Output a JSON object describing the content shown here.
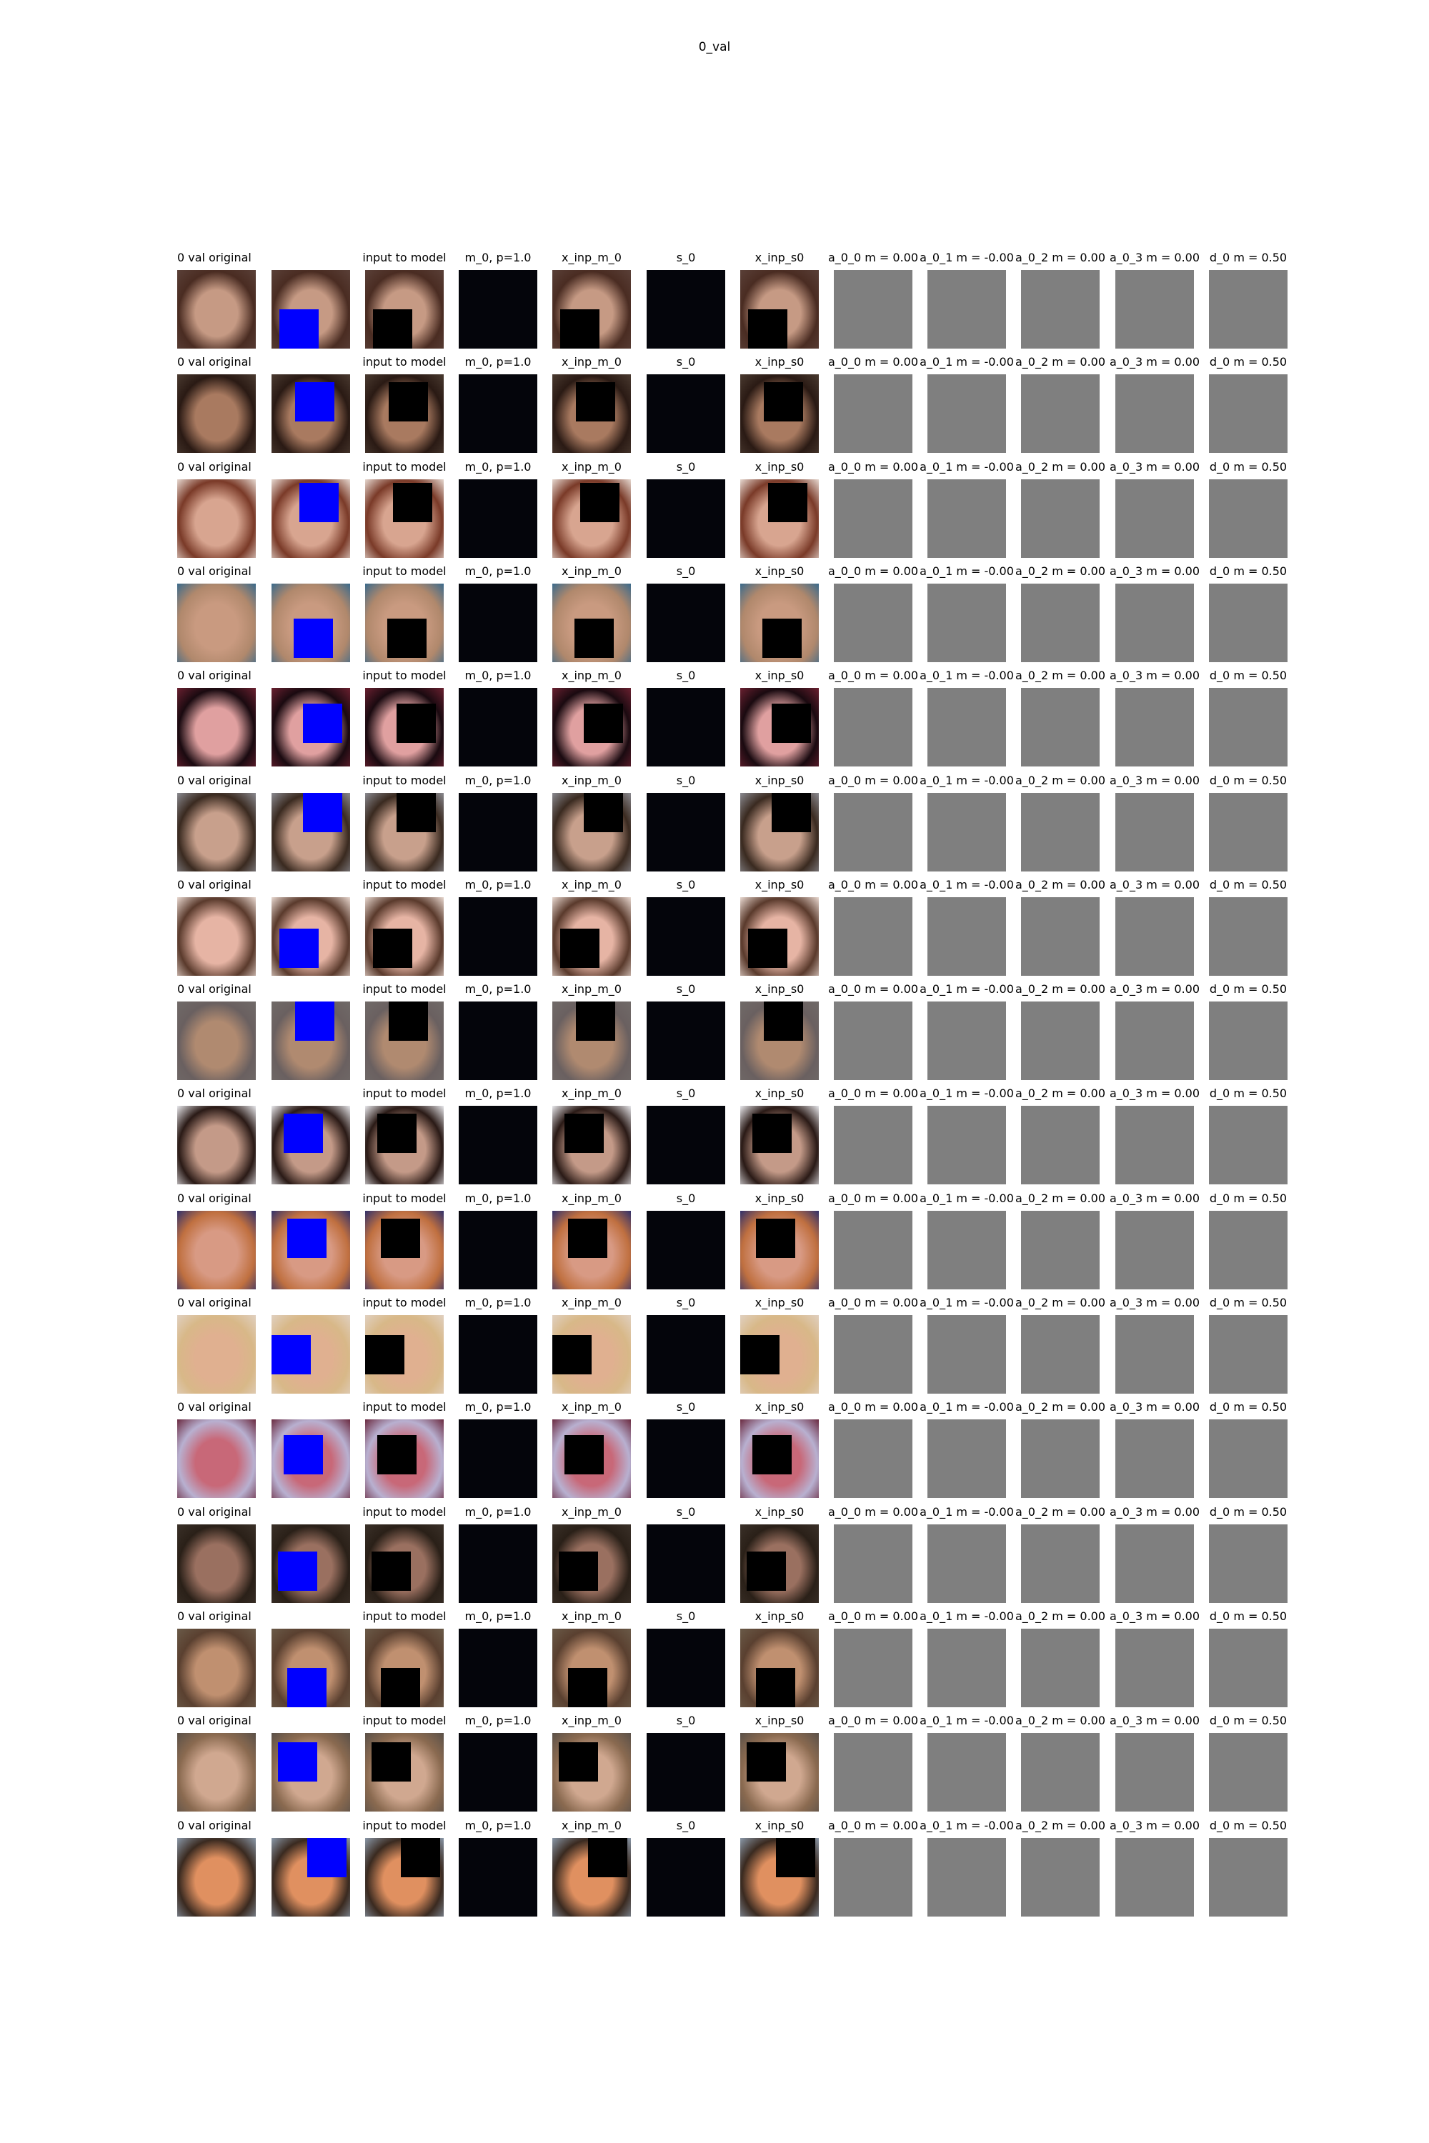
{
  "figure_title": "0_val",
  "column_titles": [
    "0 val  original",
    "",
    "input to model",
    "m_0, p=1.0",
    "x_inp_m_0",
    "s_0",
    "x_inp_s0",
    "a_0_0 m = 0.00",
    "a_0_1 m = -0.00",
    "a_0_2 m = 0.00",
    "a_0_3 m = 0.00",
    "d_0 m = 0.50"
  ],
  "colors": {
    "mask_patch": "#0000ff",
    "masked_input": "#000000",
    "dark_panel": "#04050b",
    "gray_panel": "#7f7f7f"
  },
  "rows": [
    {
      "skin": "#c69a84",
      "hair": "#4a2c22",
      "bg": "#5a4038",
      "patch": [
        0.1,
        0.5
      ]
    },
    {
      "skin": "#a97a60",
      "hair": "#2a1a14",
      "bg": "#4a3a30",
      "patch": [
        0.3,
        0.1
      ]
    },
    {
      "skin": "#d8a590",
      "hair": "#7a3a28",
      "bg": "#e6d8d0",
      "patch": [
        0.35,
        0.05
      ]
    },
    {
      "skin": "#c99a80",
      "hair": "#b0886c",
      "bg": "#3a6a8c",
      "patch": [
        0.28,
        0.45
      ]
    },
    {
      "skin": "#e0a0a0",
      "hair": "#1a0a10",
      "bg": "#6a2030",
      "patch": [
        0.4,
        0.2
      ]
    },
    {
      "skin": "#c8a08c",
      "hair": "#3a2a20",
      "bg": "#8a8a90",
      "patch": [
        0.4,
        0.0
      ]
    },
    {
      "skin": "#e6b4a4",
      "hair": "#5a3a2c",
      "bg": "#e8d8d0",
      "patch": [
        0.1,
        0.4
      ]
    },
    {
      "skin": "#b08a70",
      "hair": "#6a6060",
      "bg": "#706a68",
      "patch": [
        0.3,
        0.0
      ]
    },
    {
      "skin": "#c49a88",
      "hair": "#2a1a16",
      "bg": "#e8e8ec",
      "patch": [
        0.15,
        0.1
      ]
    },
    {
      "skin": "#d89a84",
      "hair": "#c07040",
      "bg": "#30306a",
      "patch": [
        0.2,
        0.1
      ]
    },
    {
      "skin": "#e0b090",
      "hair": "#d8b888",
      "bg": "#e0d0c0",
      "patch": [
        0.0,
        0.25
      ]
    },
    {
      "skin": "#c86878",
      "hair": "#b8b0d0",
      "bg": "#6a2a40",
      "patch": [
        0.15,
        0.2
      ]
    },
    {
      "skin": "#9a7060",
      "hair": "#2a2018",
      "bg": "#3a3028",
      "patch": [
        0.08,
        0.35
      ]
    },
    {
      "skin": "#c09070",
      "hair": "#5a4030",
      "bg": "#6a5a48",
      "patch": [
        0.2,
        0.5
      ]
    },
    {
      "skin": "#d0a890",
      "hair": "#8a6a50",
      "bg": "#5a5048",
      "patch": [
        0.08,
        0.12
      ]
    },
    {
      "skin": "#e09060",
      "hair": "#3a2a20",
      "bg": "#8a98a8",
      "patch": [
        0.45,
        0.0
      ]
    }
  ]
}
